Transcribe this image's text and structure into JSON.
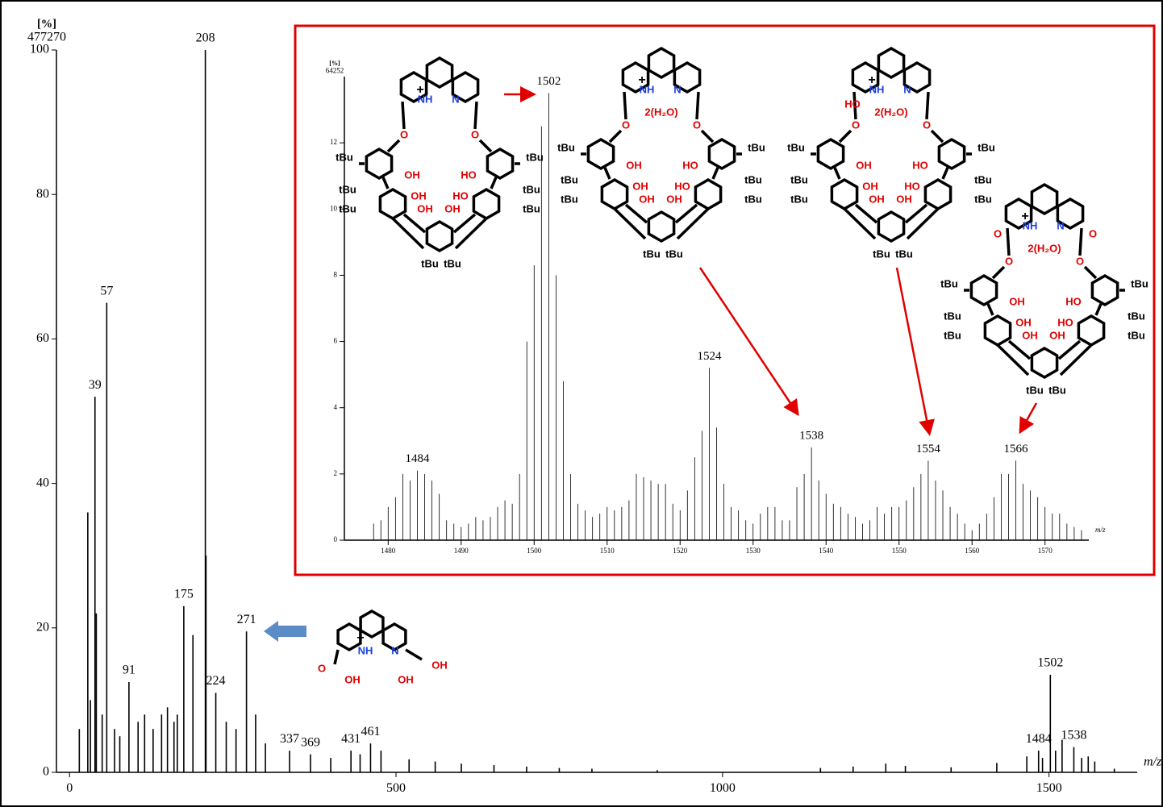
{
  "chart_data": [
    {
      "type": "bar",
      "ylabel": "[%]",
      "y_scale_note": "477270",
      "xlabel": "m/z",
      "color": "#000000",
      "xlim": [
        -20,
        1635
      ],
      "ylim": [
        0,
        100
      ],
      "xticks": [
        0,
        500,
        1000,
        1500
      ],
      "yticks": [
        0,
        20,
        40,
        60,
        80,
        100
      ],
      "x": [
        15,
        28,
        32,
        39,
        41,
        50,
        57,
        69,
        77,
        91,
        105,
        115,
        128,
        141,
        150,
        160,
        165,
        175,
        189,
        208,
        209,
        224,
        240,
        255,
        271,
        285,
        300,
        337,
        369,
        400,
        431,
        445,
        461,
        477,
        520,
        560,
        600,
        650,
        700,
        750,
        800,
        900,
        1150,
        1200,
        1250,
        1280,
        1350,
        1420,
        1466,
        1484,
        1490,
        1502,
        1510,
        1520,
        1538,
        1550,
        1560,
        1570,
        1600
      ],
      "values": [
        6,
        36,
        10,
        52,
        22,
        8,
        65,
        6,
        5,
        12.5,
        7,
        8,
        6,
        8,
        9,
        7,
        8,
        23,
        19,
        100,
        30,
        11,
        7,
        6,
        19.5,
        8,
        4,
        3,
        2.5,
        2,
        3,
        2.5,
        4,
        3,
        1.8,
        1.5,
        1.2,
        1,
        0.8,
        0.6,
        0.5,
        0.3,
        0.6,
        0.8,
        1.2,
        0.9,
        0.7,
        1.3,
        2.2,
        3,
        2,
        13.5,
        3,
        4.5,
        3.5,
        2,
        2.2,
        1.5,
        0.5
      ],
      "x_labels": [
        null,
        null,
        null,
        "39",
        null,
        null,
        "57",
        null,
        null,
        "91",
        null,
        null,
        null,
        null,
        null,
        null,
        null,
        "175",
        null,
        "208",
        null,
        "224",
        null,
        null,
        "271",
        null,
        null,
        "337",
        "369",
        null,
        "431",
        null,
        "461",
        null,
        null,
        null,
        null,
        null,
        null,
        null,
        null,
        null,
        null,
        null,
        null,
        null,
        null,
        null,
        null,
        "1484",
        null,
        "1502",
        null,
        null,
        "1538",
        null,
        null,
        null,
        null
      ]
    },
    {
      "type": "bar",
      "ylabel": "[%]",
      "y_scale_note": "64252",
      "xlabel": "m/z",
      "color": "#000000",
      "xlim": [
        1474,
        1576
      ],
      "ylim": [
        0,
        14
      ],
      "xticks": [
        1480,
        1490,
        1500,
        1510,
        1520,
        1530,
        1540,
        1550,
        1560,
        1570
      ],
      "yticks": [
        0,
        2,
        4,
        6,
        8,
        10,
        12
      ],
      "x": [
        1478,
        1479,
        1480,
        1481,
        1482,
        1483,
        1484,
        1485,
        1486,
        1487,
        1488,
        1489,
        1490,
        1491,
        1492,
        1493,
        1494,
        1495,
        1496,
        1497,
        1498,
        1499,
        1500,
        1501,
        1502,
        1503,
        1504,
        1505,
        1506,
        1507,
        1508,
        1509,
        1510,
        1511,
        1512,
        1513,
        1514,
        1515,
        1516,
        1517,
        1518,
        1519,
        1520,
        1521,
        1522,
        1523,
        1524,
        1525,
        1526,
        1527,
        1528,
        1529,
        1530,
        1531,
        1532,
        1533,
        1534,
        1535,
        1536,
        1537,
        1538,
        1539,
        1540,
        1541,
        1542,
        1543,
        1544,
        1545,
        1546,
        1547,
        1548,
        1549,
        1550,
        1551,
        1552,
        1553,
        1554,
        1555,
        1556,
        1557,
        1558,
        1559,
        1560,
        1561,
        1562,
        1563,
        1564,
        1565,
        1566,
        1567,
        1568,
        1569,
        1570,
        1571,
        1572,
        1573,
        1574,
        1575
      ],
      "values": [
        0.5,
        0.6,
        1.0,
        1.3,
        2.0,
        1.8,
        2.1,
        2.0,
        1.8,
        1.4,
        0.6,
        0.5,
        0.4,
        0.5,
        0.7,
        0.6,
        0.7,
        1.0,
        1.2,
        1.1,
        2.0,
        6.0,
        8.3,
        12.5,
        13.5,
        8.0,
        4.8,
        2.0,
        1.1,
        0.9,
        0.7,
        0.8,
        1.0,
        0.9,
        1.0,
        1.2,
        2.0,
        1.9,
        1.8,
        1.7,
        1.7,
        1.1,
        0.9,
        1.5,
        2.5,
        3.3,
        5.2,
        3.4,
        1.7,
        1.0,
        0.9,
        0.6,
        0.5,
        0.8,
        1.0,
        1.0,
        0.6,
        0.6,
        1.6,
        2.0,
        2.8,
        1.8,
        1.4,
        1.1,
        1.0,
        0.8,
        0.7,
        0.5,
        0.6,
        1.0,
        0.8,
        1.0,
        1.0,
        1.2,
        1.6,
        2.0,
        2.4,
        1.8,
        1.5,
        1.0,
        0.8,
        0.5,
        0.3,
        0.5,
        0.8,
        1.3,
        2.0,
        2.0,
        2.4,
        1.7,
        1.5,
        1.3,
        1.0,
        0.8,
        0.8,
        0.5,
        0.4,
        0.3
      ],
      "x_labels": [
        null,
        null,
        null,
        null,
        null,
        null,
        "1484",
        null,
        null,
        null,
        null,
        null,
        null,
        null,
        null,
        null,
        null,
        null,
        null,
        null,
        null,
        null,
        null,
        null,
        "1502",
        null,
        null,
        null,
        null,
        null,
        null,
        null,
        null,
        null,
        null,
        null,
        null,
        null,
        null,
        null,
        null,
        null,
        null,
        null,
        null,
        null,
        "1524",
        null,
        null,
        null,
        null,
        null,
        null,
        null,
        null,
        null,
        null,
        null,
        null,
        null,
        "1538",
        null,
        null,
        null,
        null,
        null,
        null,
        null,
        null,
        null,
        null,
        null,
        null,
        null,
        null,
        null,
        "1554",
        null,
        null,
        null,
        null,
        null,
        null,
        null,
        null,
        null,
        null,
        null,
        "1566",
        null,
        null,
        null,
        null,
        null,
        null,
        null,
        null,
        null
      ]
    }
  ],
  "structures": {
    "calixarenes": [
      {
        "labels": [
          "+",
          "NH",
          "N",
          "O",
          "O",
          "tBu",
          "tBu",
          "tBu",
          "tBu",
          "tBu",
          "tBu",
          "OH",
          "HO",
          "OH",
          "HO",
          "OH",
          "OH",
          "tBu",
          "tBu",
          null,
          null,
          null,
          null
        ]
      },
      {
        "labels": [
          "+",
          "NH",
          "N",
          "O",
          "O",
          "tBu",
          "tBu",
          "tBu",
          "tBu",
          "tBu",
          "tBu",
          "OH",
          "HO",
          "OH",
          "HO",
          "OH",
          "OH",
          "tBu",
          "tBu",
          "2(H₂O)",
          null,
          null,
          null
        ]
      },
      {
        "labels": [
          "+",
          "NH",
          "N",
          "O",
          "O",
          "tBu",
          "tBu",
          "tBu",
          "tBu",
          "tBu",
          "tBu",
          "OH",
          "HO",
          "OH",
          "HO",
          "OH",
          "OH",
          "tBu",
          "tBu",
          "2(H₂O)",
          "HO",
          null,
          null
        ]
      },
      {
        "labels": [
          "+",
          "NH",
          "N",
          "O",
          "O",
          "tBu",
          "tBu",
          "tBu",
          "tBu",
          "tBu",
          "tBu",
          "OH",
          "HO",
          "OH",
          "HO",
          "OH",
          "OH",
          "tBu",
          "tBu",
          "2(H₂O)",
          null,
          "O",
          "O"
        ]
      }
    ],
    "phen_acid": {
      "labels": [
        "+",
        "NH",
        "N",
        "O",
        "OH",
        "OH",
        "OH"
      ]
    }
  }
}
